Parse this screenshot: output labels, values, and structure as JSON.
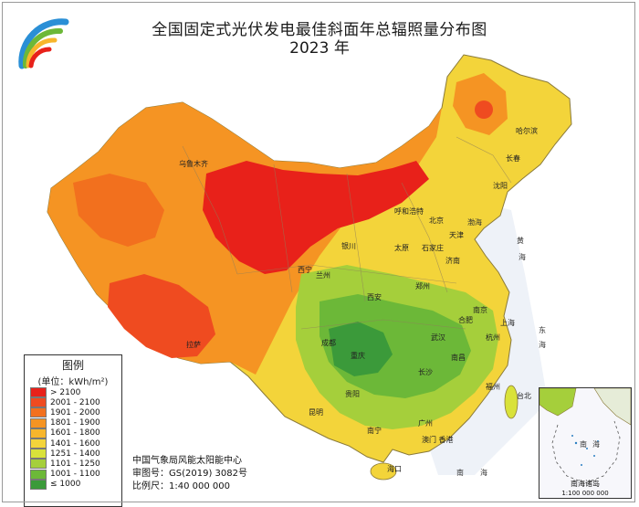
{
  "header": {
    "title": "全国固定式光伏发电最佳斜面年总辐照量分布图",
    "year": "2023 年"
  },
  "legend": {
    "title": "图例",
    "unit": "(单位：kWh/m²)",
    "items": [
      {
        "label": "> 2100",
        "color": "#e8211a"
      },
      {
        "label": "2001 - 2100",
        "color": "#ef4b20"
      },
      {
        "label": "1901 - 2000",
        "color": "#f2701e"
      },
      {
        "label": "1801 - 1900",
        "color": "#f59423"
      },
      {
        "label": "1601 - 1800",
        "color": "#f7b62c"
      },
      {
        "label": "1401 - 1600",
        "color": "#f3d43a"
      },
      {
        "label": "1251 - 1400",
        "color": "#d9e23a"
      },
      {
        "label": "1101 - 1250",
        "color": "#a5cf3b"
      },
      {
        "label": "1001 - 1100",
        "color": "#6cb838"
      },
      {
        "label": "≤ 1000",
        "color": "#3b9a3a"
      }
    ]
  },
  "credits": {
    "org": "中国气象局风能太阳能中心",
    "approval": "审图号：GS(2019) 3082号",
    "scale": "比例尺：1:40 000 000"
  },
  "inset": {
    "title": "南海诸岛",
    "scale": "1:100 000 000"
  },
  "cities": {
    "harbin": "哈尔滨",
    "changchun": "长春",
    "shenyang": "沈阳",
    "urumqi": "乌鲁木齐",
    "hohhot": "呼和浩特",
    "beijing": "北京",
    "tianjin": "天津",
    "yinchuan": "银川",
    "taiyuan": "太原",
    "shijiazhuang": "石家庄",
    "jinan": "济南",
    "xining": "西宁",
    "lanzhou": "兰州",
    "zhengzhou": "郑州",
    "xian": "西安",
    "nanjing": "南京",
    "hefei": "合肥",
    "shanghai": "上海",
    "wuhan": "武汉",
    "hangzhou": "杭州",
    "chengdu": "成都",
    "chongqing": "重庆",
    "changsha": "长沙",
    "nanchang": "南昌",
    "fuzhou": "福州",
    "lhasa": "拉萨",
    "guiyang": "贵阳",
    "kunming": "昆明",
    "nanning": "南宁",
    "guangzhou": "广州",
    "taibei": "台北",
    "macau_hk": "澳门 香港",
    "haikou": "海口"
  },
  "seas": {
    "bohai": "渤海",
    "yellow1": "黄",
    "yellow2": "海",
    "east1": "东",
    "east2": "海",
    "south1": "南",
    "south2": "海",
    "inset_south1": "南",
    "inset_south2": "海"
  }
}
